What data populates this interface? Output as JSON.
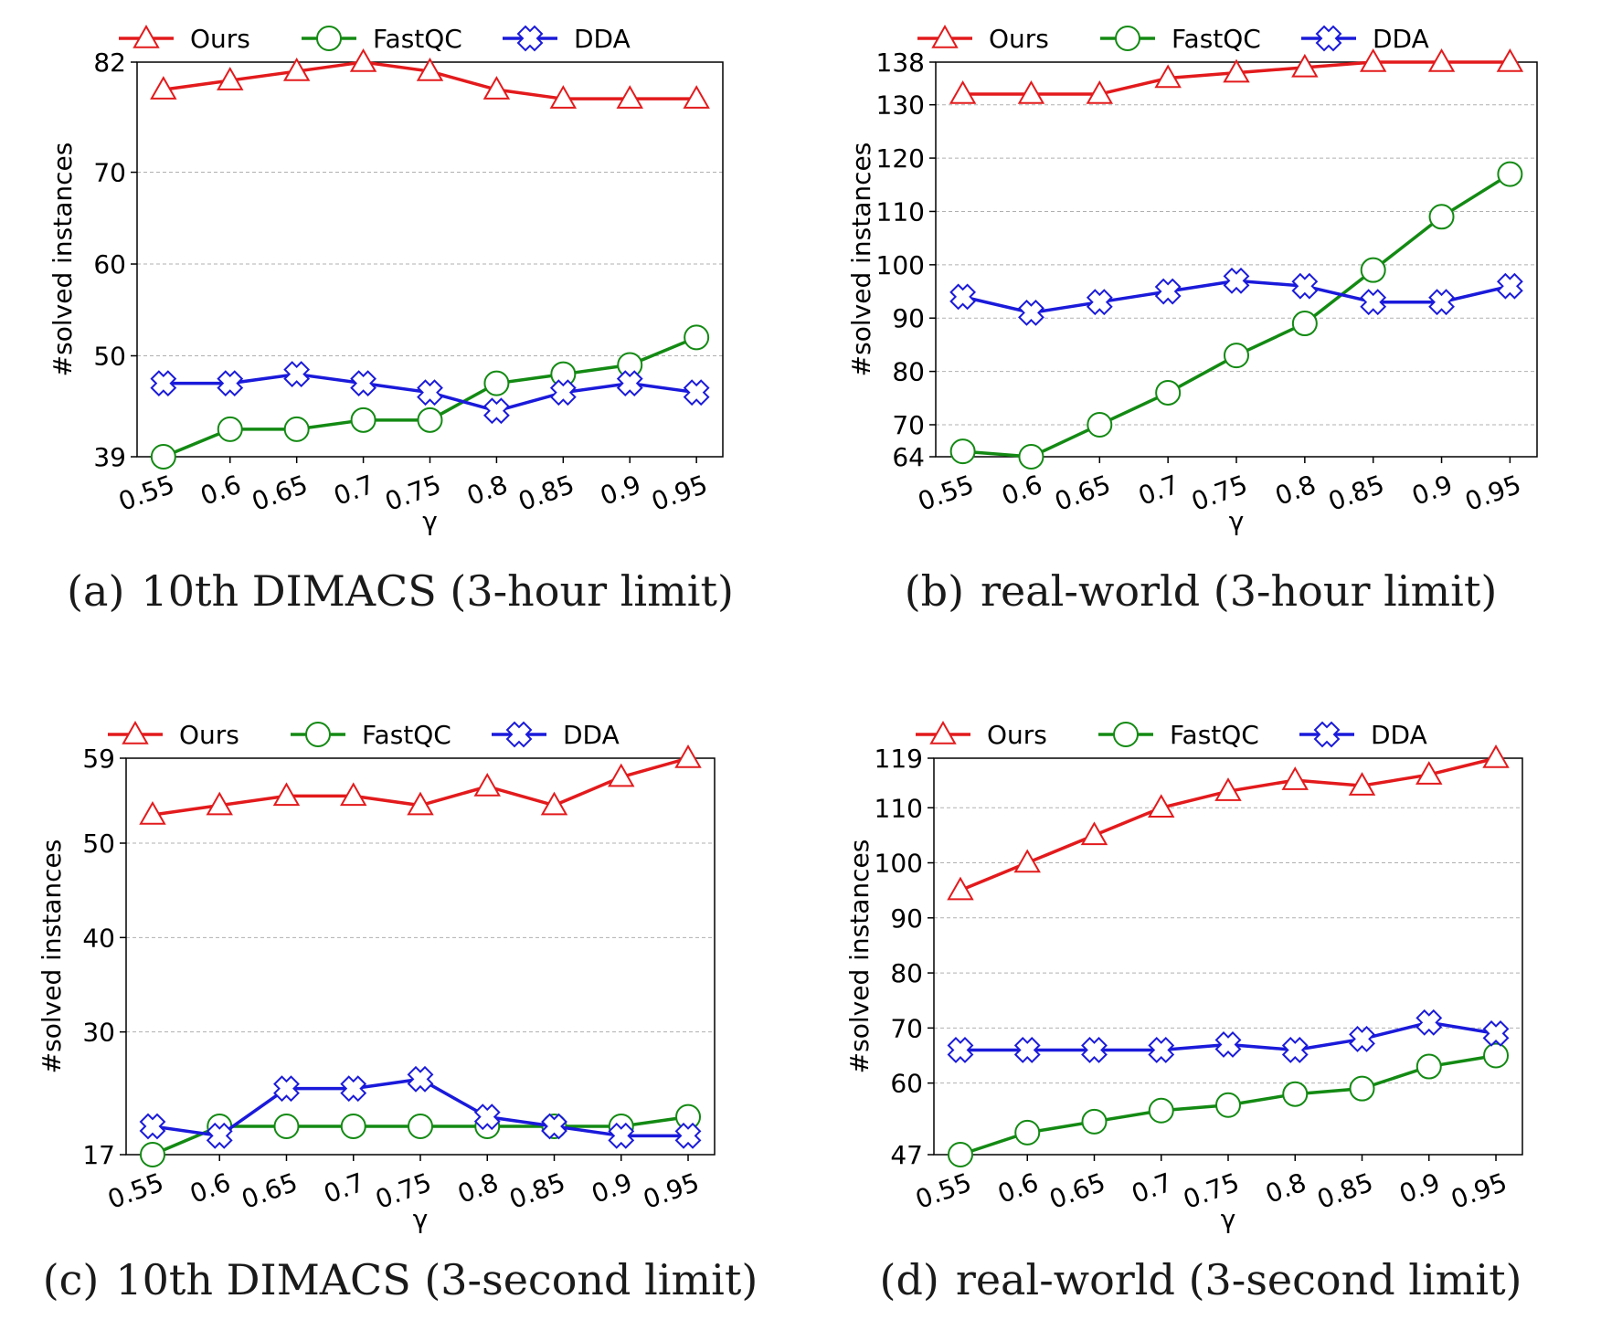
{
  "chart_data": [
    {
      "type": "line",
      "panel_letter": "(a)",
      "title": "10th DIMACS (3-hour limit)",
      "xlabel": "γ",
      "ylabel": "#solved instances",
      "categories": [
        "0.55",
        "0.6",
        "0.65",
        "0.7",
        "0.75",
        "0.8",
        "0.85",
        "0.9",
        "0.95"
      ],
      "ylim": [
        39,
        82
      ],
      "yticks": [
        39,
        50,
        60,
        70,
        82
      ],
      "grid": true,
      "legend": "top",
      "series": [
        {
          "name": "Ours",
          "color": "#e31a1c",
          "marker": "triangle",
          "values": [
            79,
            80,
            81,
            82,
            81,
            79,
            78,
            78,
            78
          ]
        },
        {
          "name": "FastQC",
          "color": "#138a13",
          "marker": "circle",
          "values": [
            39,
            42,
            42,
            43,
            43,
            47,
            48,
            49,
            52
          ]
        },
        {
          "name": "DDA",
          "color": "#1a1adb",
          "marker": "cross",
          "values": [
            47,
            47,
            48,
            47,
            46,
            44,
            46,
            47,
            46
          ]
        }
      ]
    },
    {
      "type": "line",
      "panel_letter": "(b)",
      "title": "real-world (3-hour limit)",
      "xlabel": "γ",
      "ylabel": "#solved instances",
      "categories": [
        "0.55",
        "0.6",
        "0.65",
        "0.7",
        "0.75",
        "0.8",
        "0.85",
        "0.9",
        "0.95"
      ],
      "ylim": [
        64,
        138
      ],
      "yticks": [
        64,
        70,
        80,
        90,
        100,
        110,
        120,
        130,
        138
      ],
      "grid": true,
      "legend": "top",
      "series": [
        {
          "name": "Ours",
          "color": "#e31a1c",
          "marker": "triangle",
          "values": [
            132,
            132,
            132,
            135,
            136,
            137,
            138,
            138,
            138
          ]
        },
        {
          "name": "FastQC",
          "color": "#138a13",
          "marker": "circle",
          "values": [
            65,
            64,
            70,
            76,
            83,
            89,
            99,
            109,
            117
          ]
        },
        {
          "name": "DDA",
          "color": "#1a1adb",
          "marker": "cross",
          "values": [
            94,
            91,
            93,
            95,
            97,
            96,
            93,
            93,
            96
          ]
        }
      ]
    },
    {
      "type": "line",
      "panel_letter": "(c)",
      "title": "10th DIMACS (3-second limit)",
      "xlabel": "γ",
      "ylabel": "#solved instances",
      "categories": [
        "0.55",
        "0.6",
        "0.65",
        "0.7",
        "0.75",
        "0.8",
        "0.85",
        "0.9",
        "0.95"
      ],
      "ylim": [
        17,
        59
      ],
      "yticks": [
        17,
        30,
        40,
        50,
        59
      ],
      "grid": true,
      "legend": "top",
      "series": [
        {
          "name": "Ours",
          "color": "#e31a1c",
          "marker": "triangle",
          "values": [
            53,
            54,
            55,
            55,
            54,
            56,
            54,
            57,
            59
          ]
        },
        {
          "name": "FastQC",
          "color": "#138a13",
          "marker": "circle",
          "values": [
            17,
            20,
            20,
            20,
            20,
            20,
            20,
            20,
            21
          ]
        },
        {
          "name": "DDA",
          "color": "#1a1adb",
          "marker": "cross",
          "values": [
            20,
            19,
            24,
            24,
            25,
            21,
            20,
            19,
            19
          ]
        }
      ]
    },
    {
      "type": "line",
      "panel_letter": "(d)",
      "title": "real-world (3-second limit)",
      "xlabel": "γ",
      "ylabel": "#solved instances",
      "categories": [
        "0.55",
        "0.6",
        "0.65",
        "0.7",
        "0.75",
        "0.8",
        "0.85",
        "0.9",
        "0.95"
      ],
      "ylim": [
        47,
        119
      ],
      "yticks": [
        47,
        60,
        70,
        80,
        90,
        100,
        110,
        119
      ],
      "grid": true,
      "legend": "top",
      "series": [
        {
          "name": "Ours",
          "color": "#e31a1c",
          "marker": "triangle",
          "values": [
            95,
            100,
            105,
            110,
            113,
            115,
            114,
            116,
            119
          ]
        },
        {
          "name": "FastQC",
          "color": "#138a13",
          "marker": "circle",
          "values": [
            47,
            51,
            53,
            55,
            56,
            58,
            59,
            63,
            65
          ]
        },
        {
          "name": "DDA",
          "color": "#1a1adb",
          "marker": "cross",
          "values": [
            66,
            66,
            66,
            66,
            67,
            66,
            68,
            71,
            69
          ]
        }
      ]
    }
  ]
}
